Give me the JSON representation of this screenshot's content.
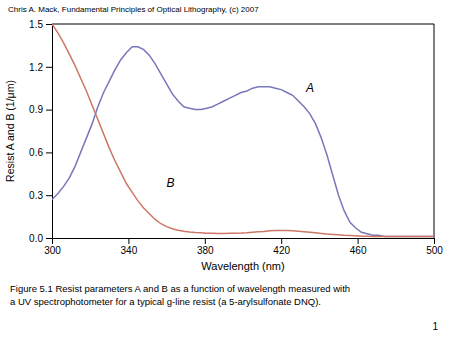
{
  "chart_data": {
    "type": "line",
    "title": "Chris A. Mack, Fundamental Principles of Optical Lithography, (c) 2007",
    "x_label": "Wavelength (nm)",
    "y_label": "Resist A and B (1/μm)",
    "caption": [
      "Figure 5.1  Resist parameters A and B as a function of wavelength measured with",
      "a UV spectrophotometer for a typical g-line resist (a 5-arylsulfonate DNQ)."
    ],
    "page_number": "1",
    "xlim": [
      300,
      500
    ],
    "ylim": [
      0,
      1.5
    ],
    "xticks": [
      300,
      340,
      380,
      420,
      460,
      500
    ],
    "yticks": [
      {
        "value": 0,
        "label": "0.0"
      },
      0.3,
      0.6,
      0.9,
      1.2,
      1.5
    ],
    "grid": false,
    "annotations": [
      {
        "text": "A",
        "x": 433,
        "y": 1.02
      },
      {
        "text": "B",
        "x": 360,
        "y": 0.36
      }
    ],
    "x": [
      300,
      303,
      306,
      309,
      312,
      315,
      318,
      321,
      324,
      327,
      330,
      333,
      336,
      339,
      342,
      345,
      348,
      351,
      354,
      357,
      360,
      363,
      366,
      369,
      372,
      375,
      378,
      381,
      384,
      387,
      390,
      393,
      396,
      399,
      402,
      405,
      408,
      411,
      414,
      417,
      420,
      423,
      426,
      429,
      432,
      435,
      438,
      441,
      444,
      447,
      450,
      453,
      456,
      459,
      462,
      465,
      468,
      471,
      474,
      477,
      480,
      483,
      486,
      489,
      492,
      495,
      498,
      500
    ],
    "series": [
      {
        "color": "#7777bb",
        "values": [
          0.27,
          0.31,
          0.36,
          0.42,
          0.5,
          0.6,
          0.7,
          0.8,
          0.92,
          1.02,
          1.1,
          1.18,
          1.25,
          1.3,
          1.34,
          1.34,
          1.32,
          1.28,
          1.22,
          1.15,
          1.08,
          1.01,
          0.96,
          0.92,
          0.91,
          0.9,
          0.9,
          0.91,
          0.92,
          0.94,
          0.96,
          0.98,
          1.0,
          1.02,
          1.03,
          1.05,
          1.06,
          1.06,
          1.06,
          1.05,
          1.04,
          1.02,
          1.0,
          0.96,
          0.92,
          0.87,
          0.8,
          0.7,
          0.58,
          0.44,
          0.3,
          0.19,
          0.11,
          0.07,
          0.04,
          0.03,
          0.02,
          0.02,
          0.01,
          0.01,
          0.01,
          0.01,
          0.01,
          0.01,
          0.01,
          0.01,
          0.01,
          0.01
        ]
      },
      {
        "color": "#cc7766",
        "values": [
          1.5,
          1.44,
          1.37,
          1.29,
          1.21,
          1.12,
          1.03,
          0.93,
          0.83,
          0.73,
          0.63,
          0.54,
          0.46,
          0.38,
          0.32,
          0.26,
          0.21,
          0.17,
          0.13,
          0.1,
          0.08,
          0.065,
          0.055,
          0.048,
          0.042,
          0.038,
          0.036,
          0.034,
          0.033,
          0.032,
          0.032,
          0.033,
          0.034,
          0.035,
          0.037,
          0.04,
          0.043,
          0.046,
          0.05,
          0.052,
          0.053,
          0.052,
          0.05,
          0.047,
          0.044,
          0.04,
          0.036,
          0.032,
          0.028,
          0.025,
          0.022,
          0.019,
          0.017,
          0.015,
          0.013,
          0.012,
          0.011,
          0.01,
          0.01,
          0.01,
          0.01,
          0.01,
          0.01,
          0.01,
          0.01,
          0.01,
          0.01,
          0.01
        ]
      }
    ]
  }
}
